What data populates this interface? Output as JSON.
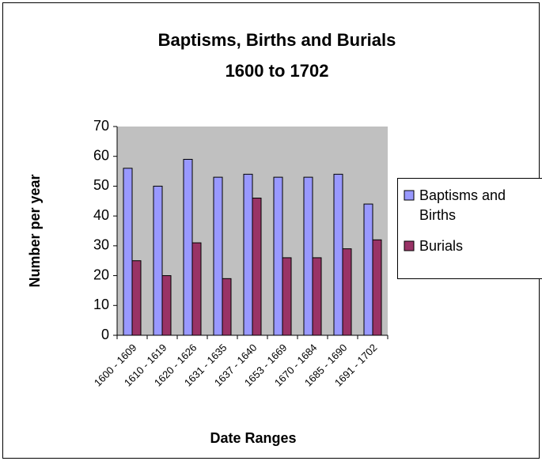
{
  "chart_data": {
    "type": "bar",
    "title": [
      "Baptisms, Births and Burials",
      "1600 to 1702"
    ],
    "x_label": "Date Ranges",
    "y_label": "Number per year",
    "categories": [
      "1600 - 1609",
      "1610 - 1619",
      "1620 - 1626",
      "1631 - 1635",
      "1637 - 1640",
      "1653 - 1669",
      "1670 - 1684",
      "1685 - 1690",
      "1691 - 1702"
    ],
    "series": [
      {
        "name": "Baptisms and Births",
        "color": "#9999ff",
        "values": [
          56,
          50,
          59,
          53,
          54,
          53,
          53,
          54,
          44
        ]
      },
      {
        "name": "Burials",
        "color": "#993366",
        "values": [
          25,
          20,
          31,
          19,
          46,
          26,
          26,
          29,
          32
        ]
      }
    ],
    "ylim": [
      0,
      70
    ],
    "yticks": [
      0,
      10,
      20,
      30,
      40,
      50,
      60,
      70
    ],
    "grid": false,
    "legend": "right"
  }
}
